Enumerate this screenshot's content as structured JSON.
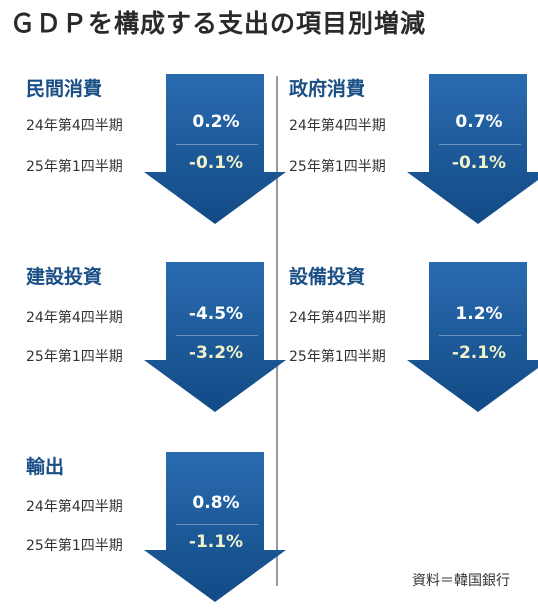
{
  "title": "ＧＤＰを構成する支出の項目別増減",
  "source": "資料＝韓国銀行",
  "colors": {
    "heading": "#1a4f86",
    "arrow_top": "#2a6bb0",
    "arrow_bottom": "#124a85",
    "value_highlight": "#f1f1c8"
  },
  "panels": [
    {
      "name": "民間消費",
      "rows": [
        {
          "period": "24年第4四半期",
          "value": "0.2%"
        },
        {
          "period": "25年第1四半期",
          "value": "-0.1%"
        }
      ]
    },
    {
      "name": "政府消費",
      "rows": [
        {
          "period": "24年第4四半期",
          "value": "0.7%"
        },
        {
          "period": "25年第1四半期",
          "value": "-0.1%"
        }
      ]
    },
    {
      "name": "建設投資",
      "rows": [
        {
          "period": "24年第4四半期",
          "value": "-4.5%"
        },
        {
          "period": "25年第1四半期",
          "value": "-3.2%"
        }
      ]
    },
    {
      "name": "設備投資",
      "rows": [
        {
          "period": "24年第4四半期",
          "value": "1.2%"
        },
        {
          "period": "25年第1四半期",
          "value": "-2.1%"
        }
      ]
    },
    {
      "name": "輸出",
      "rows": [
        {
          "period": "24年第4四半期",
          "value": "0.8%"
        },
        {
          "period": "25年第1四半期",
          "value": "-1.1%"
        }
      ]
    }
  ]
}
